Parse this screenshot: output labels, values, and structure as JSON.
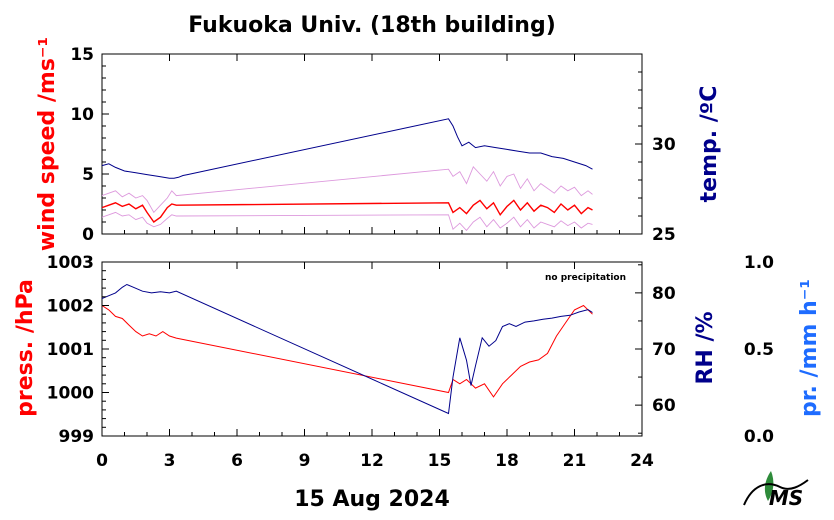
{
  "chart_data": [
    {
      "type": "line",
      "panel": "top",
      "title": "Fukuoka Univ. (18th building)",
      "ylabel_left": "wind speed /ms⁻¹",
      "ylabel_right": "temp. /ºC",
      "left_color": "#ff0000",
      "right_color": "#00008b",
      "xlim": [
        0,
        24
      ],
      "ylim_left": [
        0,
        15
      ],
      "ylim_right": [
        25,
        35
      ],
      "yticks_left": [
        "0",
        "5",
        "10",
        "15"
      ],
      "yticks_right": [
        "25",
        "30"
      ],
      "yticks_right_values": [
        25,
        30
      ],
      "series": [
        {
          "id": "wind_mean",
          "color": "#ff0000",
          "x": [
            0,
            0.3,
            0.6,
            0.9,
            1.2,
            1.5,
            1.8,
            2.0,
            2.3,
            2.6,
            2.9,
            3.1,
            3.3,
            15.4,
            15.6,
            15.9,
            16.2,
            16.5,
            16.8,
            17.1,
            17.4,
            17.7,
            18.0,
            18.3,
            18.6,
            18.9,
            19.2,
            19.5,
            19.8,
            20.1,
            20.4,
            20.7,
            21.0,
            21.3,
            21.6,
            21.8
          ],
          "y": [
            2.2,
            2.4,
            2.6,
            2.3,
            2.5,
            2.1,
            2.4,
            1.8,
            1.0,
            1.4,
            2.2,
            2.5,
            2.4,
            2.6,
            1.8,
            2.2,
            1.7,
            2.4,
            2.8,
            2.1,
            2.6,
            1.6,
            2.3,
            2.8,
            2.0,
            2.6,
            1.9,
            2.4,
            2.2,
            1.8,
            2.5,
            2.0,
            2.4,
            1.7,
            2.2,
            2.0
          ]
        },
        {
          "id": "wind_max",
          "color": "#dd99dd",
          "x": [
            0,
            0.3,
            0.6,
            0.9,
            1.2,
            1.5,
            1.8,
            2.0,
            2.3,
            2.6,
            2.9,
            3.1,
            3.3,
            15.4,
            15.6,
            15.9,
            16.2,
            16.5,
            16.8,
            17.1,
            17.4,
            17.7,
            18.0,
            18.3,
            18.6,
            18.9,
            19.2,
            19.5,
            19.8,
            20.1,
            20.4,
            20.7,
            21.0,
            21.3,
            21.6,
            21.8
          ],
          "y": [
            3.2,
            3.4,
            3.6,
            3.1,
            3.4,
            3.0,
            3.2,
            2.8,
            1.8,
            2.4,
            3.0,
            3.6,
            3.2,
            5.4,
            4.8,
            5.2,
            4.2,
            5.6,
            5.0,
            4.4,
            5.2,
            4.0,
            4.8,
            5.0,
            3.8,
            4.6,
            3.6,
            4.2,
            3.8,
            3.4,
            4.0,
            3.6,
            3.9,
            3.2,
            3.6,
            3.3
          ]
        },
        {
          "id": "wind_min",
          "color": "#dd99dd",
          "x": [
            0,
            0.3,
            0.6,
            0.9,
            1.2,
            1.5,
            1.8,
            2.0,
            2.3,
            2.6,
            2.9,
            3.1,
            3.3,
            15.4,
            15.6,
            15.9,
            16.2,
            16.5,
            16.8,
            17.1,
            17.4,
            17.7,
            18.0,
            18.3,
            18.6,
            18.9,
            19.2,
            19.5,
            19.8,
            20.1,
            20.4,
            20.7,
            21.0,
            21.3,
            21.6,
            21.8
          ],
          "y": [
            1.4,
            1.6,
            1.8,
            1.5,
            1.6,
            1.2,
            1.4,
            0.9,
            0.6,
            0.8,
            1.3,
            1.6,
            1.5,
            1.6,
            0.4,
            0.9,
            0.3,
            1.0,
            1.4,
            0.6,
            1.2,
            0.5,
            0.9,
            1.4,
            0.6,
            1.2,
            0.5,
            1.0,
            0.8,
            0.6,
            1.1,
            0.7,
            1.0,
            0.5,
            0.9,
            0.8
          ]
        },
        {
          "id": "temp",
          "color": "#00008b",
          "x": [
            0,
            0.3,
            0.6,
            1.0,
            1.5,
            2.0,
            2.5,
            3.0,
            3.2,
            3.4,
            3.6,
            3.8,
            15.4,
            15.6,
            15.8,
            16.0,
            16.3,
            16.6,
            17.0,
            17.5,
            18.0,
            18.5,
            19.0,
            19.5,
            20.0,
            20.5,
            21.0,
            21.5,
            21.8
          ],
          "y": [
            28.8,
            28.9,
            28.7,
            28.5,
            28.4,
            28.3,
            28.2,
            28.1,
            28.1,
            28.15,
            28.25,
            28.3,
            31.4,
            31.0,
            30.4,
            29.9,
            30.1,
            29.8,
            29.9,
            29.8,
            29.7,
            29.6,
            29.5,
            29.5,
            29.3,
            29.2,
            29.0,
            28.8,
            28.6
          ]
        }
      ]
    },
    {
      "type": "line",
      "panel": "bottom",
      "ylabel_left": "press. /hPa",
      "ylabel_right": "RH /%",
      "ylabel_right2": "pr. /mm h⁻¹",
      "left_color": "#ff0000",
      "right_color": "#00008b",
      "right2_color": "#1e6cff",
      "annotation": "no precipitation",
      "xlim": [
        0,
        24
      ],
      "xticks": [
        "0",
        "3",
        "6",
        "9",
        "12",
        "15",
        "18",
        "21",
        "24"
      ],
      "xlabel": "15 Aug 2024",
      "ylim_left": [
        999,
        1003
      ],
      "ylim_right": [
        54.5,
        85.5
      ],
      "ylim_right2": [
        0.0,
        1.0
      ],
      "yticks_left": [
        "999",
        "1000",
        "1001",
        "1002",
        "1003"
      ],
      "yticks_right": [
        "60",
        "70",
        "80"
      ],
      "yticks_right_values": [
        60,
        70,
        80
      ],
      "yticks_right2": [
        "0.0",
        "0.5",
        "1.0"
      ],
      "series": [
        {
          "id": "pressure",
          "color": "#ff0000",
          "x": [
            0,
            0.3,
            0.6,
            0.9,
            1.2,
            1.5,
            1.8,
            2.1,
            2.4,
            2.7,
            3.0,
            3.3,
            15.4,
            15.6,
            15.9,
            16.2,
            16.6,
            17.0,
            17.4,
            17.8,
            18.2,
            18.6,
            19.0,
            19.4,
            19.8,
            20.2,
            20.6,
            21.0,
            21.4,
            21.8
          ],
          "y": [
            1002.0,
            1001.9,
            1001.75,
            1001.7,
            1001.55,
            1001.4,
            1001.3,
            1001.35,
            1001.3,
            1001.4,
            1001.3,
            1001.25,
            1000.0,
            1000.3,
            1000.2,
            1000.3,
            1000.1,
            1000.2,
            999.9,
            1000.2,
            1000.4,
            1000.6,
            1000.7,
            1000.75,
            1000.9,
            1001.3,
            1001.6,
            1001.9,
            1002.0,
            1001.8
          ]
        },
        {
          "id": "rh",
          "color": "#00008b",
          "x": [
            0,
            0.3,
            0.6,
            0.9,
            1.1,
            1.4,
            1.8,
            2.2,
            2.6,
            3.0,
            3.3,
            15.4,
            15.6,
            15.9,
            16.2,
            16.4,
            16.6,
            16.9,
            17.2,
            17.5,
            17.8,
            18.1,
            18.4,
            18.8,
            19.2,
            19.6,
            20.0,
            20.4,
            20.8,
            21.2,
            21.6,
            21.8
          ],
          "y": [
            79.0,
            79.5,
            80.0,
            81.0,
            81.5,
            81.0,
            80.3,
            80.0,
            80.2,
            80.0,
            80.3,
            58.5,
            65.0,
            72.0,
            68.0,
            63.5,
            67.0,
            72.0,
            70.5,
            71.5,
            74.0,
            74.5,
            74.0,
            74.8,
            75.0,
            75.3,
            75.5,
            75.8,
            76.0,
            76.6,
            77.0,
            76.5
          ]
        }
      ]
    }
  ],
  "logo_text": "MS"
}
